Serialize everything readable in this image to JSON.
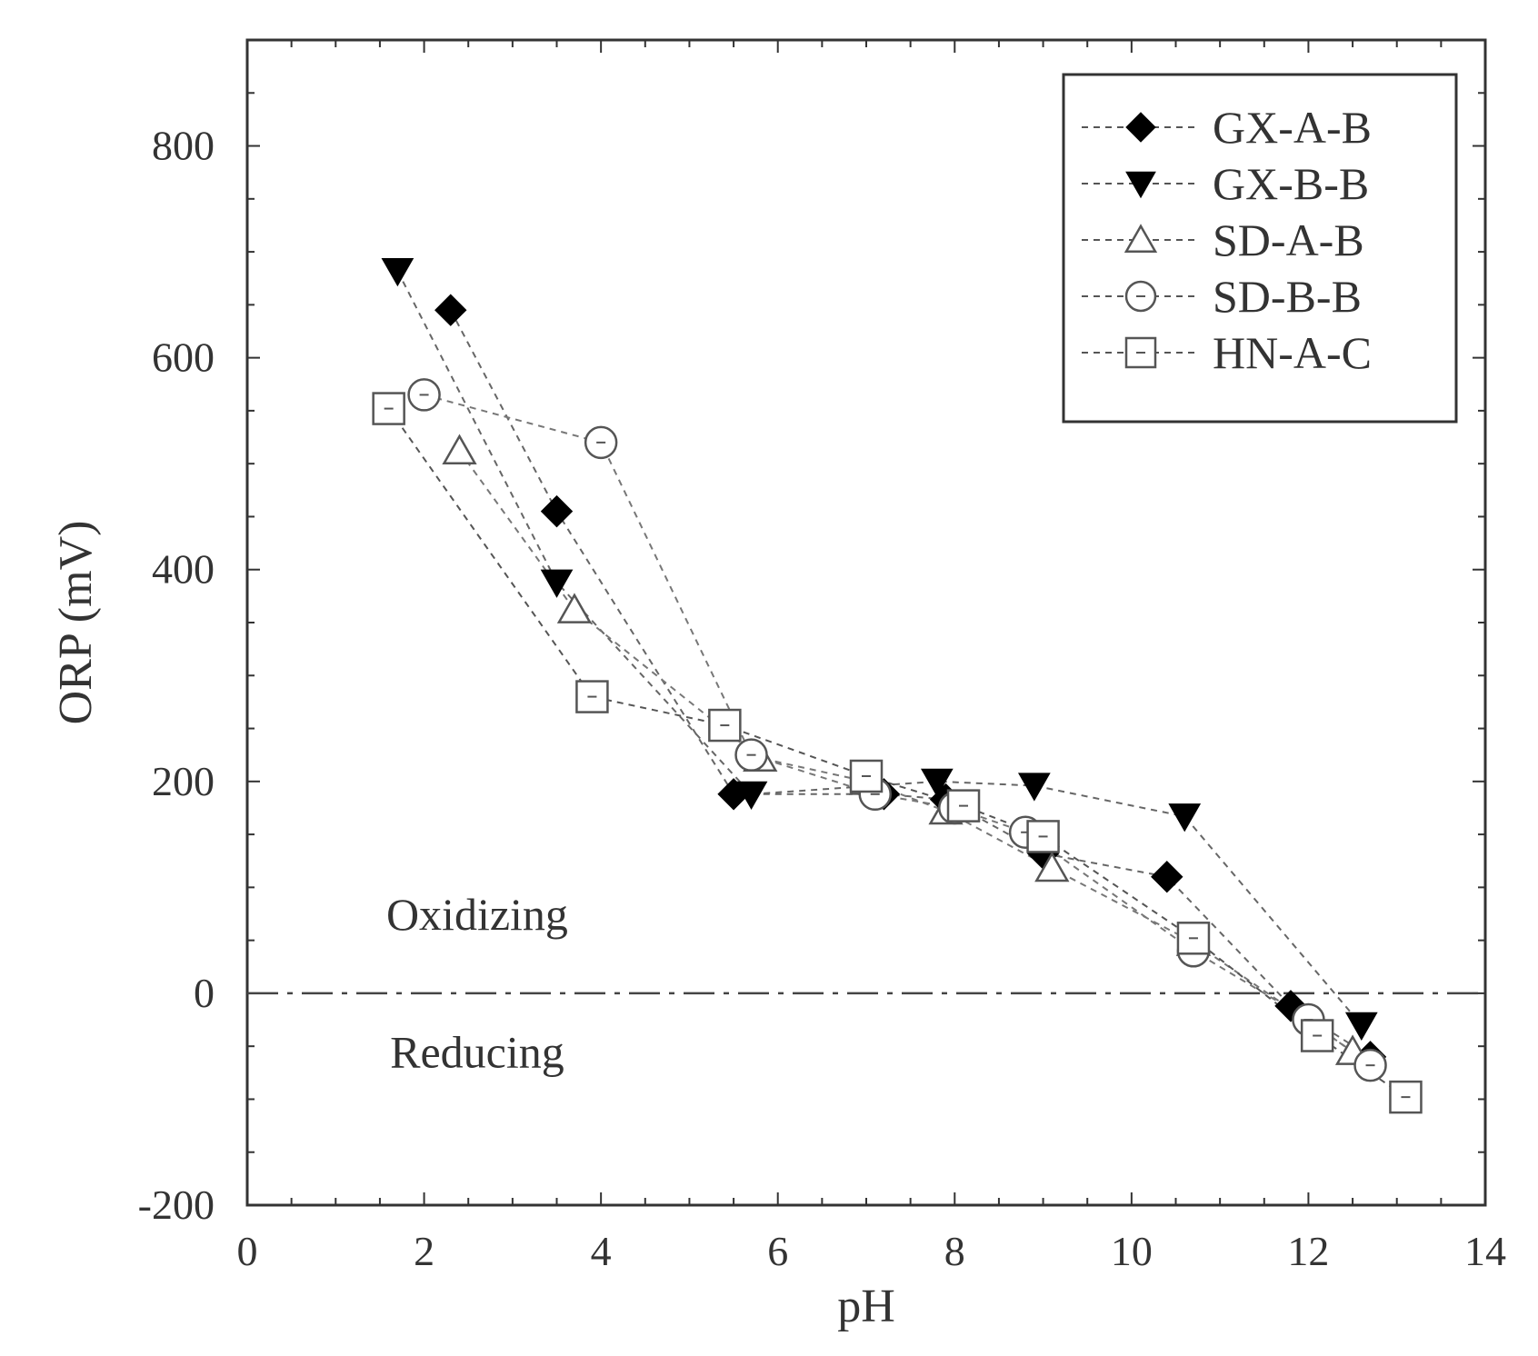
{
  "chart_data": {
    "type": "scatter",
    "title": "",
    "xlabel": "pH",
    "ylabel": "ORP (mV)",
    "xlim": [
      0,
      14
    ],
    "ylim": [
      -200,
      900
    ],
    "x_ticks": [
      0,
      2,
      4,
      6,
      8,
      10,
      12,
      14
    ],
    "y_ticks": [
      -200,
      0,
      200,
      400,
      600,
      800
    ],
    "legend_position": "top-right",
    "reference_line": {
      "y": 0,
      "style": "dash-dot"
    },
    "annotations": [
      {
        "text": "Oxidizing",
        "x": 2.6,
        "y": 60
      },
      {
        "text": "Reducing",
        "x": 2.6,
        "y": -70
      }
    ],
    "series": [
      {
        "name": "GX-A-B",
        "marker": "diamond-filled",
        "points": [
          [
            2.3,
            645
          ],
          [
            3.5,
            455
          ],
          [
            5.5,
            188
          ],
          [
            7.2,
            188
          ],
          [
            7.9,
            183
          ],
          [
            9.0,
            132
          ],
          [
            10.4,
            110
          ],
          [
            11.8,
            -12
          ],
          [
            12.7,
            -60
          ]
        ]
      },
      {
        "name": "GX-B-B",
        "marker": "triangle-down-filled",
        "points": [
          [
            1.7,
            682
          ],
          [
            3.5,
            388
          ],
          [
            5.7,
            188
          ],
          [
            7.8,
            200
          ],
          [
            8.9,
            196
          ],
          [
            10.6,
            167
          ],
          [
            12.6,
            -30
          ]
        ]
      },
      {
        "name": "SD-A-B",
        "marker": "triangle-up-open",
        "points": [
          [
            2.4,
            512
          ],
          [
            3.7,
            362
          ],
          [
            5.8,
            222
          ],
          [
            7.0,
            200
          ],
          [
            7.9,
            172
          ],
          [
            9.1,
            118
          ],
          [
            10.7,
            48
          ],
          [
            12.5,
            -55
          ]
        ]
      },
      {
        "name": "SD-B-B",
        "marker": "circle-open",
        "points": [
          [
            2.0,
            565
          ],
          [
            4.0,
            520
          ],
          [
            5.7,
            225
          ],
          [
            7.1,
            188
          ],
          [
            8.0,
            175
          ],
          [
            8.8,
            152
          ],
          [
            10.7,
            40
          ],
          [
            12.0,
            -25
          ],
          [
            12.7,
            -68
          ]
        ]
      },
      {
        "name": "HN-A-C",
        "marker": "square-open",
        "points": [
          [
            1.6,
            552
          ],
          [
            3.9,
            280
          ],
          [
            5.4,
            253
          ],
          [
            7.0,
            205
          ],
          [
            8.1,
            177
          ],
          [
            9.0,
            148
          ],
          [
            10.7,
            52
          ],
          [
            12.1,
            -40
          ],
          [
            13.1,
            -98
          ]
        ]
      }
    ]
  }
}
